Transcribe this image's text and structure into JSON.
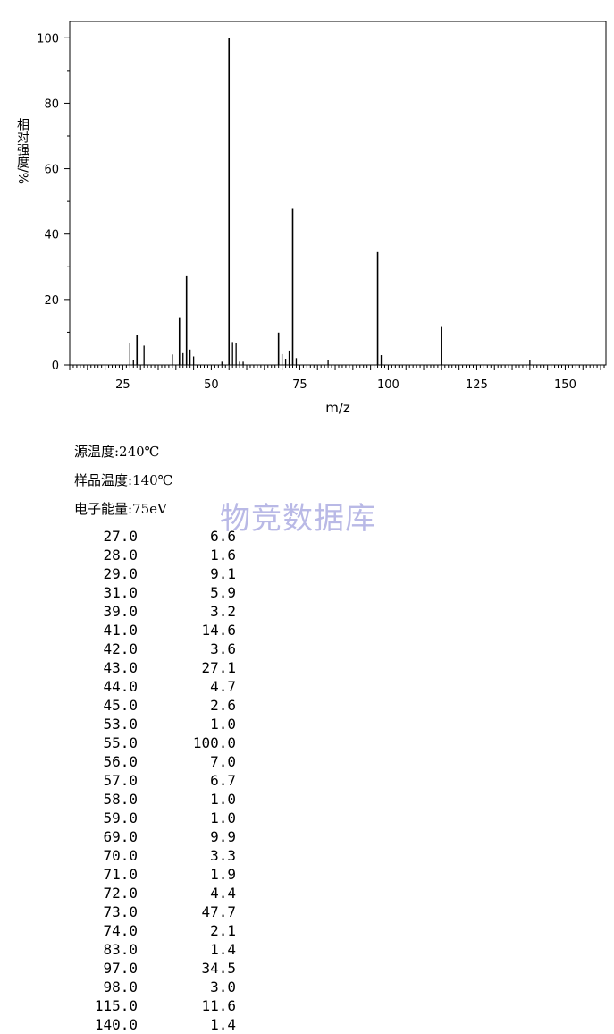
{
  "chart_data": {
    "type": "bar",
    "title": "",
    "xlabel": "m/z",
    "ylabel": "相对强度/%",
    "xlim": [
      10,
      161.5
    ],
    "ylim": [
      0,
      105
    ],
    "xticks": [
      25,
      50,
      75,
      100,
      125,
      150
    ],
    "yticks": [
      0,
      20,
      40,
      60,
      80,
      100
    ],
    "series": [
      {
        "x": [
          27.0,
          28.0,
          29.0,
          31.0,
          39.0,
          41.0,
          42.0,
          43.0,
          44.0,
          45.0,
          53.0,
          55.0,
          56.0,
          57.0,
          58.0,
          59.0,
          69.0,
          70.0,
          71.0,
          72.0,
          73.0,
          74.0,
          83.0,
          97.0,
          98.0,
          115.0,
          140.0
        ],
        "values": [
          6.6,
          1.6,
          9.1,
          5.9,
          3.2,
          14.6,
          3.6,
          27.1,
          4.7,
          2.6,
          1.0,
          100.0,
          7.0,
          6.7,
          1.0,
          1.0,
          9.9,
          3.3,
          1.9,
          4.4,
          47.7,
          2.1,
          1.4,
          34.5,
          3.0,
          11.6,
          1.4
        ]
      }
    ]
  },
  "conditions": [
    {
      "label": "源温度:240℃"
    },
    {
      "label": "样品温度:140℃"
    },
    {
      "label": "电子能量:75eV"
    }
  ],
  "watermark": "物竞数据库",
  "peak_table": [
    {
      "mz": "27.0",
      "intensity": "6.6"
    },
    {
      "mz": "28.0",
      "intensity": "1.6"
    },
    {
      "mz": "29.0",
      "intensity": "9.1"
    },
    {
      "mz": "31.0",
      "intensity": "5.9"
    },
    {
      "mz": "39.0",
      "intensity": "3.2"
    },
    {
      "mz": "41.0",
      "intensity": "14.6"
    },
    {
      "mz": "42.0",
      "intensity": "3.6"
    },
    {
      "mz": "43.0",
      "intensity": "27.1"
    },
    {
      "mz": "44.0",
      "intensity": "4.7"
    },
    {
      "mz": "45.0",
      "intensity": "2.6"
    },
    {
      "mz": "53.0",
      "intensity": "1.0"
    },
    {
      "mz": "55.0",
      "intensity": "100.0"
    },
    {
      "mz": "56.0",
      "intensity": "7.0"
    },
    {
      "mz": "57.0",
      "intensity": "6.7"
    },
    {
      "mz": "58.0",
      "intensity": "1.0"
    },
    {
      "mz": "59.0",
      "intensity": "1.0"
    },
    {
      "mz": "69.0",
      "intensity": "9.9"
    },
    {
      "mz": "70.0",
      "intensity": "3.3"
    },
    {
      "mz": "71.0",
      "intensity": "1.9"
    },
    {
      "mz": "72.0",
      "intensity": "4.4"
    },
    {
      "mz": "73.0",
      "intensity": "47.7"
    },
    {
      "mz": "74.0",
      "intensity": "2.1"
    },
    {
      "mz": "83.0",
      "intensity": "1.4"
    },
    {
      "mz": "97.0",
      "intensity": "34.5"
    },
    {
      "mz": "98.0",
      "intensity": "3.0"
    },
    {
      "mz": "115.0",
      "intensity": "11.6"
    },
    {
      "mz": "140.0",
      "intensity": "1.4"
    }
  ]
}
